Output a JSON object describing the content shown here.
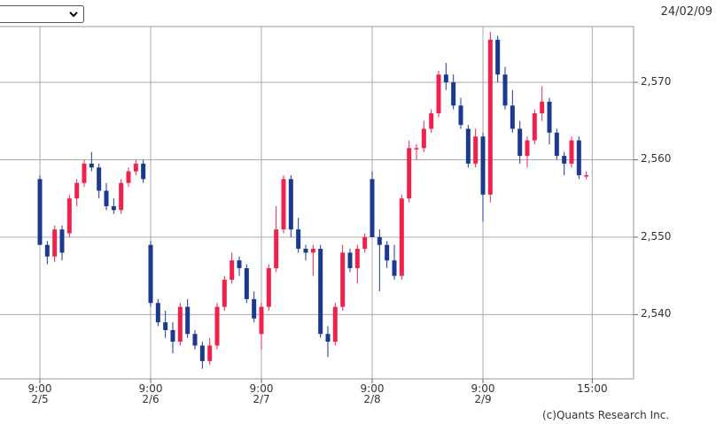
{
  "chart_data": {
    "type": "candlestick",
    "date": "24/02/09",
    "credit": "(c)Quants Research Inc.",
    "up_color": "#f0214e",
    "down_color": "#1b3a8e",
    "grid": true,
    "x": [
      0,
      1,
      2,
      3,
      4,
      5,
      6,
      7,
      8,
      9,
      10,
      11,
      12,
      13,
      14,
      15,
      16,
      17,
      18,
      19,
      20,
      21,
      22,
      23,
      24,
      25,
      26,
      27,
      28,
      29,
      30,
      31,
      32,
      33,
      34,
      35,
      36,
      37,
      38,
      39,
      40,
      41,
      42,
      43,
      44,
      45,
      46,
      47,
      48,
      49,
      50,
      51,
      52,
      53,
      54,
      55,
      56,
      57,
      58,
      59,
      60,
      61,
      62,
      63,
      64,
      65,
      66,
      67,
      68,
      69,
      70,
      71,
      72,
      73,
      74
    ],
    "open": [
      2557.5,
      2549,
      2547.5,
      2551,
      2550.5,
      2555,
      2557,
      2559.5,
      2559,
      2556,
      2554,
      2553.5,
      2557,
      2558.5,
      2559.5,
      2549,
      2541.5,
      2539,
      2538,
      2536.5,
      2541,
      2537.5,
      2536,
      2534,
      2536,
      2541,
      2544.5,
      2547,
      2546,
      2542,
      2537.5,
      2541,
      2546,
      2551,
      2557.5,
      2551,
      2548.5,
      2548,
      2548.5,
      2537.5,
      2536.5,
      2541,
      2548,
      2546,
      2548.5,
      2557.5,
      2550,
      2549,
      2547,
      2545,
      2555,
      2561.5,
      2561.5,
      2564,
      2566,
      2571,
      2570,
      2567,
      2564,
      2559.5,
      2563,
      2555.5,
      2575.5,
      2571,
      2567,
      2564,
      2560.5,
      2562.5,
      2566,
      2567.5,
      2563.5,
      2560.5,
      2559.5,
      2562.5,
      2558
    ],
    "high": [
      2558,
      2549.5,
      2551.5,
      2551.5,
      2555.5,
      2557.5,
      2560,
      2561,
      2559.5,
      2557,
      2555,
      2557.5,
      2559,
      2560,
      2560,
      2549.5,
      2542,
      2540.5,
      2539,
      2541.5,
      2542,
      2538,
      2536.5,
      2537,
      2541.5,
      2545,
      2548,
      2547.5,
      2546.5,
      2543,
      2541.5,
      2546.5,
      2554,
      2558,
      2558,
      2552.5,
      2549,
      2549,
      2549,
      2538.5,
      2541.5,
      2549,
      2548.5,
      2549,
      2550.5,
      2558.5,
      2551,
      2549.5,
      2549,
      2555.5,
      2562.5,
      2562,
      2565,
      2566.5,
      2571.5,
      2572.5,
      2571,
      2568,
      2564.5,
      2564,
      2563.5,
      2576.5,
      2576,
      2572,
      2569,
      2565,
      2563,
      2566.5,
      2569.5,
      2568,
      2564,
      2561,
      2563,
      2563,
      2558.5
    ],
    "low": [
      2549,
      2546.5,
      2546.8,
      2547,
      2550,
      2554,
      2556.5,
      2558.5,
      2555,
      2553.5,
      2553,
      2553,
      2556.5,
      2558,
      2557,
      2541,
      2538.5,
      2537,
      2535,
      2536,
      2537,
      2535.5,
      2533,
      2533.5,
      2535.5,
      2540.5,
      2544,
      2545,
      2541.5,
      2539,
      2535.5,
      2540.5,
      2545.5,
      2550.5,
      2550,
      2548,
      2547,
      2545,
      2537,
      2534.5,
      2536,
      2540.5,
      2545.5,
      2544,
      2548,
      2550,
      2543,
      2546,
      2544.5,
      2544.5,
      2554.5,
      2560,
      2561,
      2563.5,
      2565.5,
      2569,
      2566.5,
      2564,
      2559,
      2559,
      2552,
      2554.5,
      2570,
      2566.5,
      2563.5,
      2559.5,
      2559,
      2562,
      2565,
      2562,
      2560,
      2558,
      2559,
      2557.5,
      2557.5
    ],
    "close": [
      2549,
      2547.5,
      2551,
      2548,
      2555,
      2557,
      2559.5,
      2559,
      2556,
      2554,
      2553.5,
      2557,
      2558.5,
      2559.5,
      2557.5,
      2541.5,
      2539,
      2538,
      2536.5,
      2541,
      2537.5,
      2536,
      2534,
      2536,
      2541,
      2544.5,
      2547,
      2546,
      2542,
      2539.5,
      2541,
      2546,
      2551,
      2557.5,
      2551,
      2548.5,
      2548,
      2548.5,
      2537.5,
      2536.5,
      2541,
      2548,
      2546,
      2548.5,
      2550,
      2550,
      2549,
      2547,
      2545,
      2555,
      2561.5,
      2561.5,
      2564,
      2566,
      2571,
      2570,
      2567,
      2564.5,
      2559.5,
      2563,
      2555.5,
      2575.5,
      2571,
      2567,
      2564,
      2560.5,
      2562.5,
      2566,
      2567.5,
      2563.5,
      2560.5,
      2559.5,
      2562.5,
      2558,
      2558
    ],
    "xlim": [
      -5.4,
      80.4
    ],
    "xticks": [
      {
        "value": 0,
        "label": "9:00\n2/5"
      },
      {
        "value": 15,
        "label": "9:00\n2/6"
      },
      {
        "value": 30,
        "label": "9:00\n2/7"
      },
      {
        "value": 45,
        "label": "9:00\n2/8"
      },
      {
        "value": 60,
        "label": "9:00\n2/9"
      },
      {
        "value": 74.8,
        "label": "15:00"
      }
    ],
    "ylim": [
      2531.7,
      2577.2
    ],
    "yticks": [
      {
        "value": 2540,
        "label": "2,540"
      },
      {
        "value": 2550,
        "label": "2,550"
      },
      {
        "value": 2560,
        "label": "2,560"
      },
      {
        "value": 2570,
        "label": "2,570"
      }
    ]
  }
}
